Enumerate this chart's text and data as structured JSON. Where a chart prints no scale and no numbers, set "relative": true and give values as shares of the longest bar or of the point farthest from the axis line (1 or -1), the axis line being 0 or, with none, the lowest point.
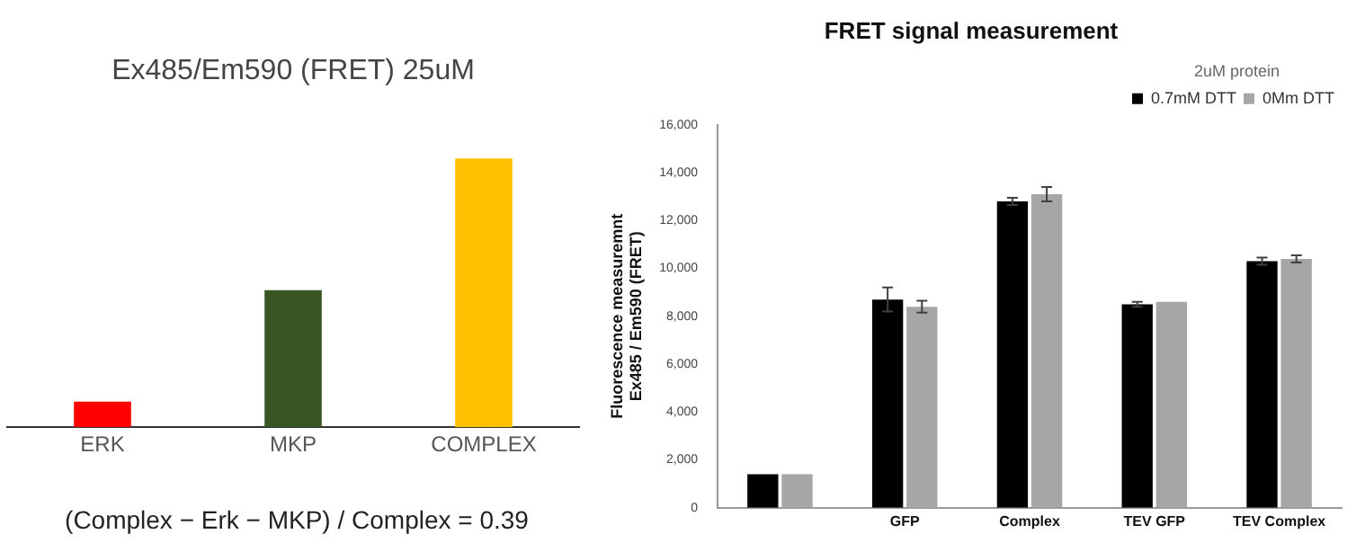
{
  "chart_data": [
    {
      "type": "bar",
      "subtitle": "Ex485/Em590 (FRET) 25uM",
      "categories": [
        "ERK",
        "MKP",
        "COMPLEX"
      ],
      "relative": true,
      "values": [
        0.095,
        0.51,
        1
      ],
      "colors": [
        "#ff0000",
        "#375623",
        "#ffc000"
      ],
      "annotations": [
        "(Complex − Erk − MKP) / Complex = 0.39"
      ],
      "grid": false,
      "legend": false
    },
    {
      "type": "bar",
      "title": "FRET signal measurement",
      "ylabel": "Fluorescence measuremnt\nEx485 / Em590 (FRET)",
      "legend_title": "2uM protein",
      "legend": "top right",
      "grid": false,
      "categories": [
        null,
        "GFP",
        "Complex",
        "TEV GFP",
        "TEV Complex"
      ],
      "ylim": [
        0,
        16000
      ],
      "yticks": [
        {
          "value": 0,
          "label": "0"
        },
        {
          "value": 2000,
          "label": "2,000"
        },
        {
          "value": 4000,
          "label": "4,000"
        },
        {
          "value": 6000,
          "label": "6,000"
        },
        {
          "value": 8000,
          "label": "8,000"
        },
        {
          "value": 10000,
          "label": "10,000"
        },
        {
          "value": 12000,
          "label": "12,000"
        },
        {
          "value": 14000,
          "label": "14,000"
        },
        {
          "value": 16000,
          "label": "16,000"
        }
      ],
      "series": [
        {
          "name": "0.7mM DTT",
          "color": "#000000",
          "values": [
            1400,
            8700,
            12800,
            8500,
            10300
          ],
          "errors": [
            null,
            500,
            150,
            100,
            150
          ]
        },
        {
          "name": "0Mm DTT",
          "color": "#a6a6a6",
          "values": [
            1400,
            8400,
            13100,
            8600,
            10400
          ],
          "errors": [
            null,
            250,
            300,
            null,
            150
          ]
        }
      ]
    }
  ]
}
